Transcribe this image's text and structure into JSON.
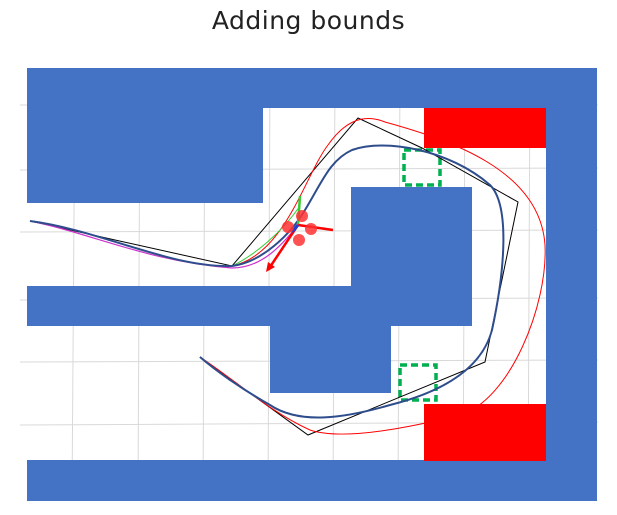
{
  "title": "Adding bounds",
  "colors": {
    "obstacle": "#4472c4",
    "bound_region": "#ff0000",
    "target_box": "#00b050",
    "optimized_path": "#2e4d8c",
    "reference_path": "#000000",
    "alternate_path": "#ff0000",
    "candidate_path": "#cc33cc",
    "grid": "#d9d9d9"
  },
  "legend": []
}
